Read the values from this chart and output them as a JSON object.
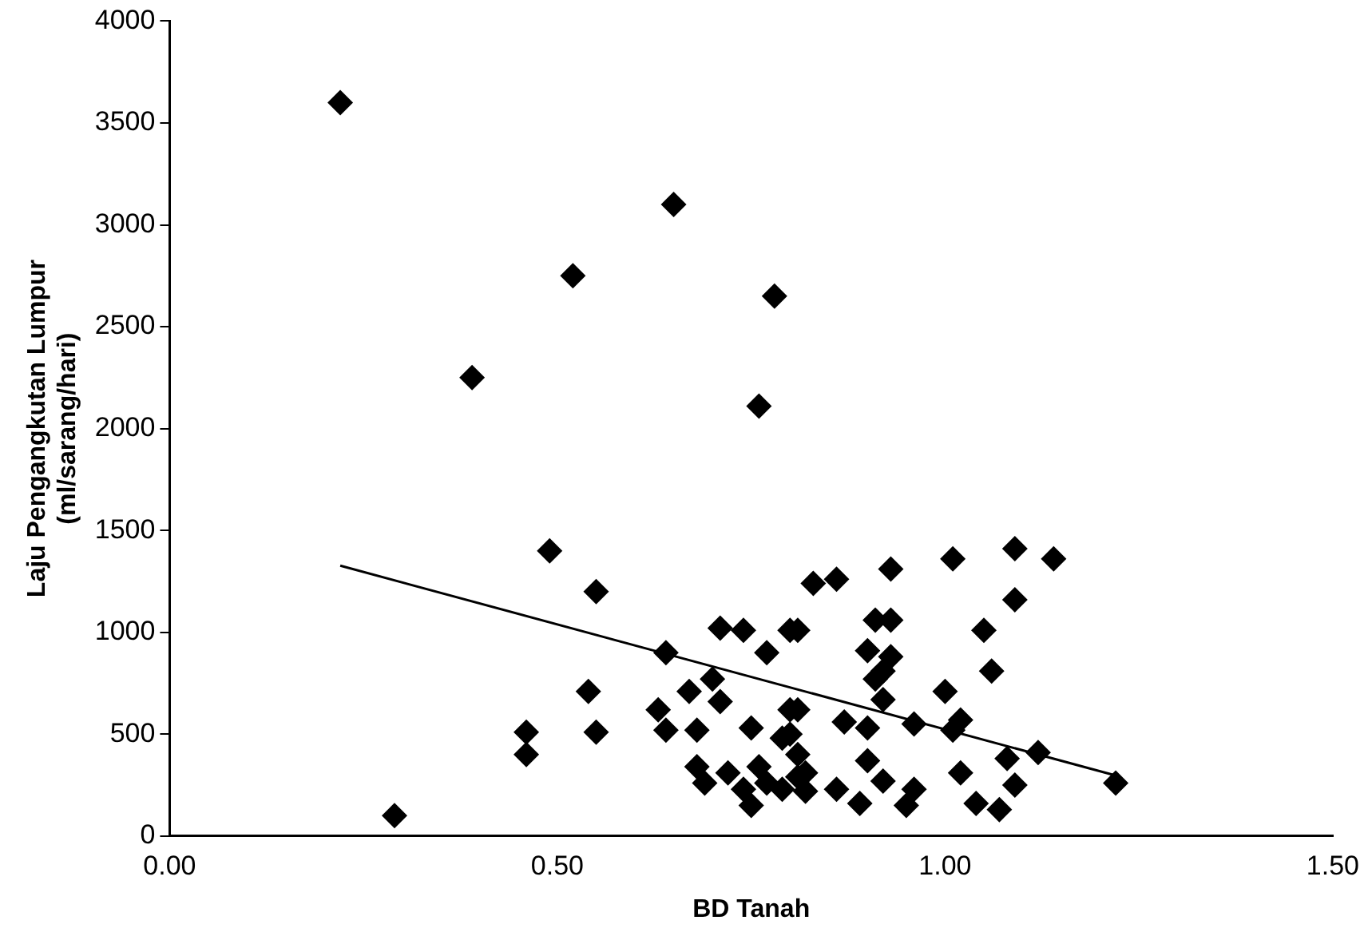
{
  "chart_data": {
    "type": "scatter",
    "xlabel": "BD Tanah",
    "ylabel": "Laju Pengangkutan Lumpur\n(ml/sarang/hari)",
    "xlim": [
      0,
      1.5
    ],
    "xticks": [
      {
        "value": 0,
        "label": "0.00"
      },
      {
        "value": 0.5,
        "label": "0.50"
      },
      {
        "value": 1,
        "label": "1.00"
      },
      {
        "value": 1.5,
        "label": "1.50"
      }
    ],
    "ylim": [
      0,
      4000
    ],
    "yticks": [
      0,
      500,
      1000,
      1500,
      2000,
      2500,
      3000,
      3500,
      4000
    ],
    "grid": false,
    "legend": false,
    "series": [
      {
        "marker": "diamond",
        "color": "#000000",
        "x": [
          0.22,
          0.39,
          0.52,
          0.65,
          0.78,
          0.76,
          0.49,
          0.55,
          0.29,
          0.46,
          0.46,
          0.54,
          0.55,
          0.64,
          0.71,
          0.74,
          0.77,
          0.8,
          0.63,
          0.64,
          0.67,
          0.7,
          0.71,
          0.68,
          0.68,
          0.69,
          0.72,
          0.75,
          0.76,
          0.74,
          0.77,
          0.79,
          0.81,
          0.75,
          0.8,
          0.79,
          0.81,
          0.83,
          0.86,
          0.93,
          1.01,
          1.09,
          1.14,
          1.09,
          0.81,
          0.91,
          0.93,
          1.05,
          0.9,
          0.93,
          1.06,
          0.91,
          0.92,
          0.92,
          1.0,
          0.96,
          1.01,
          1.02,
          0.87,
          0.9,
          0.81,
          0.8,
          1.12,
          1.22,
          1.08,
          1.09,
          1.02,
          1.04,
          1.07,
          0.96,
          0.95,
          0.89,
          0.86,
          0.9,
          0.92,
          0.82,
          0.82
        ],
        "values": [
          3600,
          2250,
          2750,
          3100,
          2650,
          2110,
          1400,
          1200,
          100,
          510,
          400,
          710,
          510,
          900,
          1020,
          1010,
          900,
          1010,
          620,
          520,
          710,
          770,
          660,
          520,
          340,
          260,
          310,
          150,
          340,
          230,
          260,
          230,
          290,
          530,
          620,
          480,
          400,
          1240,
          1260,
          1310,
          1360,
          1410,
          1360,
          1160,
          1010,
          1060,
          1060,
          1010,
          910,
          880,
          810,
          770,
          810,
          670,
          710,
          550,
          520,
          570,
          560,
          530,
          620,
          500,
          410,
          260,
          380,
          250,
          310,
          160,
          130,
          230,
          150,
          160,
          230,
          370,
          270,
          310,
          220
        ]
      },
      {
        "type": "line",
        "marker": "none",
        "color": "#000000",
        "x": [
          0.22,
          1.22
        ],
        "values": [
          1327,
          297
        ]
      }
    ]
  }
}
